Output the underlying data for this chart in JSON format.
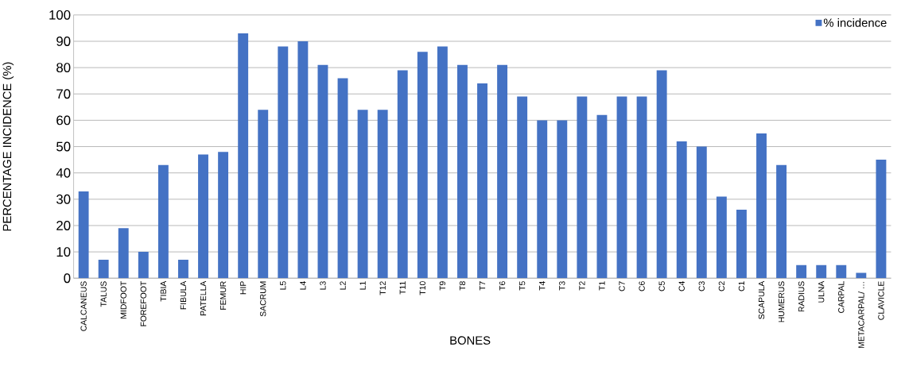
{
  "chart_data": {
    "type": "bar",
    "xlabel": "BONES",
    "ylabel": "PERCENTAGE INCIDENCE (%)",
    "categories": [
      "CALCANEUS",
      "TALUS",
      "MIDFOOT",
      "FOREFOOT",
      "TIBIA",
      "FIBULA",
      "PATELLA",
      "FEMUR",
      "HIP",
      "SACRUM",
      "L5",
      "L4",
      "L3",
      "L2",
      "L1",
      "T12",
      "T11",
      "T10",
      "T9",
      "T8",
      "T7",
      "T6",
      "T5",
      "T4",
      "T3",
      "T2",
      "T1",
      "C7",
      "C6",
      "C5",
      "C4",
      "C3",
      "C2",
      "C1",
      "SCAPULA",
      "HUMERUS",
      "RADIUS",
      "ULNA",
      "CARPAL",
      "METACARPAL/ …",
      "CLAVICLE"
    ],
    "series": [
      {
        "name": "% incidence",
        "color": "#4472c4",
        "values": [
          33,
          7,
          19,
          10,
          43,
          7,
          47,
          48,
          93,
          64,
          88,
          90,
          81,
          76,
          64,
          64,
          79,
          86,
          88,
          81,
          74,
          81,
          69,
          60,
          60,
          69,
          62,
          69,
          69,
          79,
          52,
          50,
          31,
          26,
          55,
          43,
          5,
          5,
          5,
          2,
          45
        ]
      }
    ],
    "ylim": [
      0,
      100
    ],
    "yticks": [
      0,
      10,
      20,
      30,
      40,
      50,
      60,
      70,
      80,
      90,
      100
    ],
    "grid": "y",
    "legend": "top right"
  }
}
